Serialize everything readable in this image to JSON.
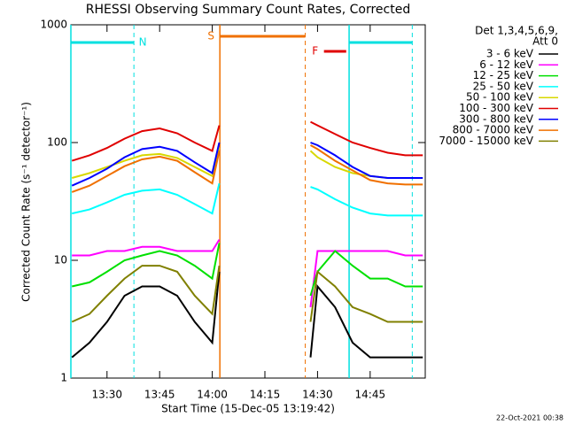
{
  "chart_data": {
    "type": "line",
    "title": "RHESSI Observing Summary Count Rates, Corrected",
    "xlabel": "Start Time (15-Dec-05 13:19:42)",
    "ylabel": "Corrected Count Rate (s⁻¹ detector⁻¹)",
    "footer": "22-Oct-2021 00:38",
    "legend_title": [
      "Det 1,3,4,5,6,9,",
      "Att 0"
    ],
    "ylog": true,
    "ylim": [
      1,
      1000
    ],
    "yticks": [
      1,
      10,
      100,
      1000
    ],
    "xlim": [
      "13:19:42",
      "15:00:42"
    ],
    "xticks": [
      "13:30",
      "13:45",
      "14:00",
      "14:15",
      "14:30",
      "14:45"
    ],
    "intervals": [
      {
        "label": "N",
        "color": "#00e0e0",
        "start": "13:19:42",
        "end": "13:37:40"
      },
      {
        "color": "#00e0e0",
        "start": "14:39:00",
        "end": "14:57:00"
      },
      {
        "label": "S",
        "color": "#f07000",
        "start": "14:02:10",
        "end": "14:26:30"
      },
      {
        "label": "F",
        "color": "#e00000",
        "start": "14:31:50",
        "end": "14:38:10"
      }
    ],
    "x": [
      "13:20",
      "13:25",
      "13:30",
      "13:35",
      "13:40",
      "13:45",
      "13:50",
      "13:55",
      "14:00",
      "14:02",
      "14:15",
      "14:28",
      "14:30",
      "14:35",
      "14:40",
      "14:45",
      "14:50",
      "14:55",
      "15:00"
    ],
    "series": [
      {
        "name": "3 - 6 keV",
        "color": "#000000",
        "values": [
          1.5,
          2,
          3,
          5,
          6,
          6,
          5,
          3,
          2,
          8,
          null,
          1.5,
          6,
          4,
          2,
          1.5,
          1.5,
          1.5,
          1.5
        ]
      },
      {
        "name": "6 - 12 keV",
        "color": "#ff00ff",
        "values": [
          11,
          11,
          12,
          12,
          13,
          13,
          12,
          12,
          12,
          15,
          null,
          4,
          12,
          12,
          12,
          12,
          12,
          11,
          11
        ]
      },
      {
        "name": "12 - 25 keV",
        "color": "#00e000",
        "values": [
          6,
          6.5,
          8,
          10,
          11,
          12,
          11,
          9,
          7,
          14,
          null,
          5,
          8,
          12,
          9,
          7,
          7,
          6,
          6
        ]
      },
      {
        "name": "25 - 50 keV",
        "color": "#00ffff",
        "values": [
          25,
          27,
          31,
          36,
          39,
          40,
          36,
          30,
          25,
          45,
          null,
          42,
          40,
          33,
          28,
          25,
          24,
          24,
          24
        ]
      },
      {
        "name": "50 - 100 keV",
        "color": "#d8d800",
        "values": [
          50,
          55,
          62,
          70,
          78,
          80,
          74,
          62,
          52,
          90,
          null,
          85,
          75,
          62,
          55,
          52,
          50,
          50,
          50
        ]
      },
      {
        "name": "100 - 300 keV",
        "color": "#e00000",
        "values": [
          70,
          78,
          90,
          108,
          125,
          132,
          120,
          100,
          85,
          140,
          null,
          150,
          140,
          118,
          100,
          90,
          82,
          78,
          78
        ]
      },
      {
        "name": "300 - 800 keV",
        "color": "#0000ff",
        "values": [
          43,
          50,
          60,
          75,
          88,
          92,
          85,
          68,
          55,
          100,
          null,
          100,
          95,
          78,
          62,
          52,
          50,
          50,
          50
        ]
      },
      {
        "name": "800 - 7000 keV",
        "color": "#f07000",
        "values": [
          38,
          43,
          52,
          63,
          72,
          76,
          70,
          56,
          45,
          85,
          null,
          95,
          88,
          70,
          58,
          48,
          45,
          44,
          44
        ]
      },
      {
        "name": "7000 - 15000 keV",
        "color": "#808000",
        "values": [
          3,
          3.5,
          5,
          7,
          9,
          9,
          8,
          5,
          3.5,
          9,
          null,
          3,
          8,
          6,
          4,
          3.5,
          3,
          3,
          3
        ]
      }
    ]
  }
}
